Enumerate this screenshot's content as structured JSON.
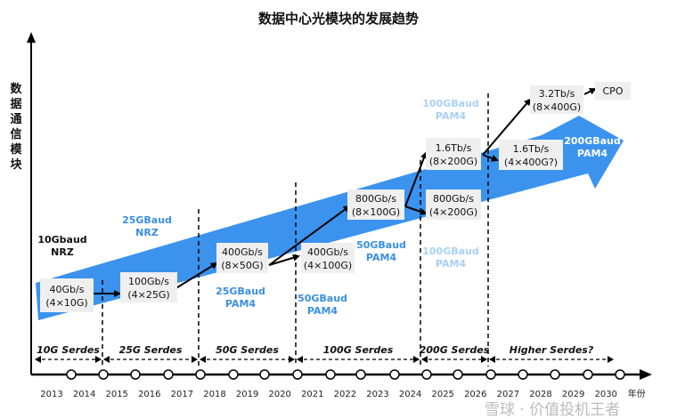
{
  "title": "数据中心光模块的发展趋势",
  "y_axis_label": "数据通信模块",
  "x_axis_label": "年份",
  "years": [
    "2013",
    "2014",
    "2015",
    "2016",
    "2017",
    "2018",
    "2019",
    "2020",
    "2021",
    "2022",
    "2023",
    "2024",
    "2025",
    "2026",
    "2027",
    "2028",
    "2029",
    "2030"
  ],
  "serdes": [
    "10G Serdes",
    "25G Serdes",
    "50G Serdes",
    "100G Serdes",
    "200G Serdes",
    "Higher Serdes?"
  ],
  "modules": [
    {
      "rate": "40Gb/s",
      "config": "(4×10G)"
    },
    {
      "rate": "100Gb/s",
      "config": "(4×25G)"
    },
    {
      "rate": "400Gb/s",
      "config": "(8×50G)"
    },
    {
      "rate": "400Gb/s",
      "config": "(4×100G)"
    },
    {
      "rate": "800Gb/s",
      "config": "(8×100G)"
    },
    {
      "rate": "800Gb/s",
      "config": "(4×200G)"
    },
    {
      "rate": "1.6Tb/s",
      "config": "(8×200G)"
    },
    {
      "rate": "1.6Tb/s",
      "config": "(4×400G?)"
    },
    {
      "rate": "3.2Tb/s",
      "config": "(8×400G)"
    },
    {
      "rate": "CPO",
      "config": ""
    }
  ],
  "baud_labels": [
    {
      "l1": "10Gbaud",
      "l2": "NRZ"
    },
    {
      "l1": "25GBaud",
      "l2": "NRZ"
    },
    {
      "l1": "25GBaud",
      "l2": "PAM4"
    },
    {
      "l1": "50GBaud",
      "l2": "PAM4"
    },
    {
      "l1": "50GBaud",
      "l2": "PAM4"
    },
    {
      "l1": "100GBaud",
      "l2": "PAM4"
    },
    {
      "l1": "100GBaud",
      "l2": "PAM4"
    },
    {
      "l1": "200GBaud",
      "l2": "PAM4"
    }
  ],
  "watermark": "雪球 · 价值投机王者",
  "colors": {
    "arrow": "#3b93ee",
    "baud_blue": "#3a8fe0",
    "baud_light": "#a9d0f5",
    "box": "#efefef"
  }
}
